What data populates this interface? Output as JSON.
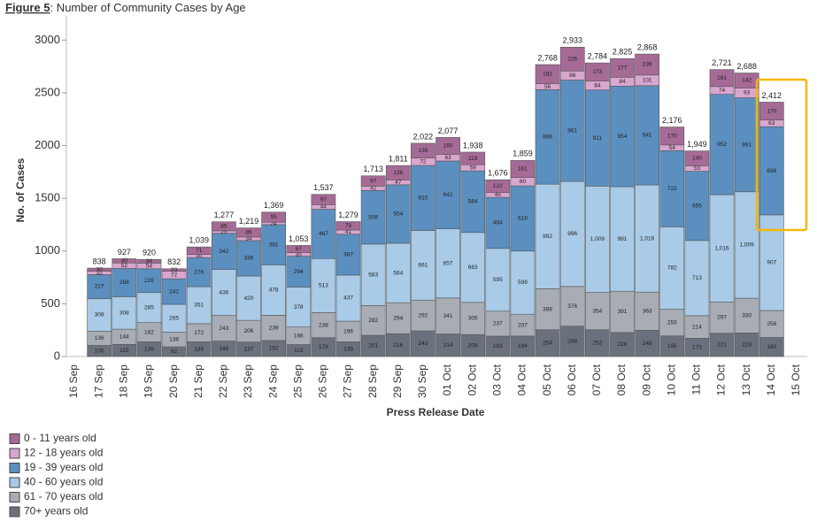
{
  "chart_data": {
    "type": "stacked_bar",
    "figure_label": "Figure 5",
    "title": ": Number of Community Cases by Age",
    "x_label": "Press Release Date",
    "y_label": "No. of Cases",
    "categories": [
      "16 Sep",
      "17 Sep",
      "18 Sep",
      "19 Sep",
      "20 Sep",
      "21 Sep",
      "22 Sep",
      "23 Sep",
      "24 Sep",
      "25 Sep",
      "26 Sep",
      "27 Sep",
      "28 Sep",
      "29 Sep",
      "30 Sep",
      "01 Oct",
      "02 Oct",
      "03 Oct",
      "04 Oct",
      "05 Oct",
      "06 Oct",
      "07 Oct",
      "08 Oct",
      "09 Oct",
      "10 Oct",
      "11 Oct",
      "12 Oct",
      "13 Oct",
      "14 Oct",
      "15 Oct"
    ],
    "series": [
      {
        "name": "70+ years old",
        "color": "#6b717c",
        "values": [
          null,
          105,
          115,
          139,
          92,
          139,
          146,
          137,
          152,
          113,
          178,
          139,
          201,
          216,
          243,
          214,
          208,
          193,
          194,
          254,
          288,
          253,
          228,
          248,
          195,
          173,
          221,
          223,
          180,
          null
        ]
      },
      {
        "name": "61 - 70 years old",
        "color": "#a8adb5",
        "values": [
          null,
          136,
          144,
          182,
          138,
          172,
          243,
          206,
          239,
          166,
          238,
          196,
          282,
          294,
          292,
          341,
          305,
          237,
          207,
          388,
          376,
          354,
          391,
          363,
          253,
          214,
          297,
          330,
          256,
          null
        ]
      },
      {
        "name": "40 - 60 years old",
        "color": "#a9cbe8",
        "values": [
          null,
          308,
          308,
          285,
          265,
          351,
          436,
          420,
          478,
          378,
          513,
          437,
          583,
          564,
          661,
          657,
          663,
          595,
          599,
          992,
          996,
          1009,
          991,
          1016,
          782,
          713,
          1016,
          1009,
          907,
          null
        ],
        "value_labels": [
          null,
          "308",
          "308",
          "285",
          "265",
          "351",
          "436",
          "420",
          "478",
          "378",
          "513",
          "437",
          "583",
          "564",
          "661",
          "657",
          "663",
          "595",
          "599",
          "992",
          "996",
          "1,009",
          "991",
          "1,016",
          "782",
          "713",
          "1,016",
          "1,009",
          "907",
          null
        ]
      },
      {
        "name": "19 - 39 years old",
        "color": "#5b8fbf",
        "values": [
          null,
          227,
          268,
          226,
          242,
          276,
          342,
          336,
          381,
          294,
          467,
          387,
          508,
          554,
          615,
          642,
          584,
          484,
          618,
          896,
          961,
          911,
          954,
          941,
          722,
          656,
          952,
          891,
          836,
          null
        ]
      },
      {
        "name": "12 - 18 years old",
        "color": "#d9a6cf",
        "values": [
          null,
          32,
          52,
          54,
          72,
          30,
          25,
          34,
          24,
          35,
          44,
          41,
          42,
          47,
          72,
          63,
          59,
          45,
          80,
          56,
          86,
          84,
          84,
          101,
          54,
          53,
          74,
          93,
          63,
          null
        ]
      },
      {
        "name": "0 - 11 years old",
        "color": "#a56a96",
        "values": [
          null,
          30,
          40,
          34,
          23,
          71,
          85,
          86,
          95,
          67,
          97,
          79,
          97,
          136,
          139,
          160,
          119,
          122,
          161,
          182,
          226,
          173,
          177,
          199,
          170,
          140,
          161,
          142,
          170,
          null
        ]
      }
    ],
    "total_labels": [
      null,
      "838",
      "927",
      "920",
      "832",
      "1,039",
      "1,277",
      "1,219",
      "1,369",
      "1,053",
      "1,537",
      "1,279",
      "1,713",
      "1,811",
      "2,022",
      "2,077",
      "1,938",
      "1,676",
      "1,859",
      "2,768",
      "2,933",
      "2,784",
      "2,825",
      "2,868",
      "2,176",
      "1,949",
      "2,721",
      "2,688",
      "2,412",
      null
    ],
    "ylim": [
      0,
      3070
    ],
    "yticks": [
      0,
      500,
      1000,
      1500,
      2000,
      2500,
      3000
    ],
    "grid": false,
    "legend": "bottom-left"
  }
}
